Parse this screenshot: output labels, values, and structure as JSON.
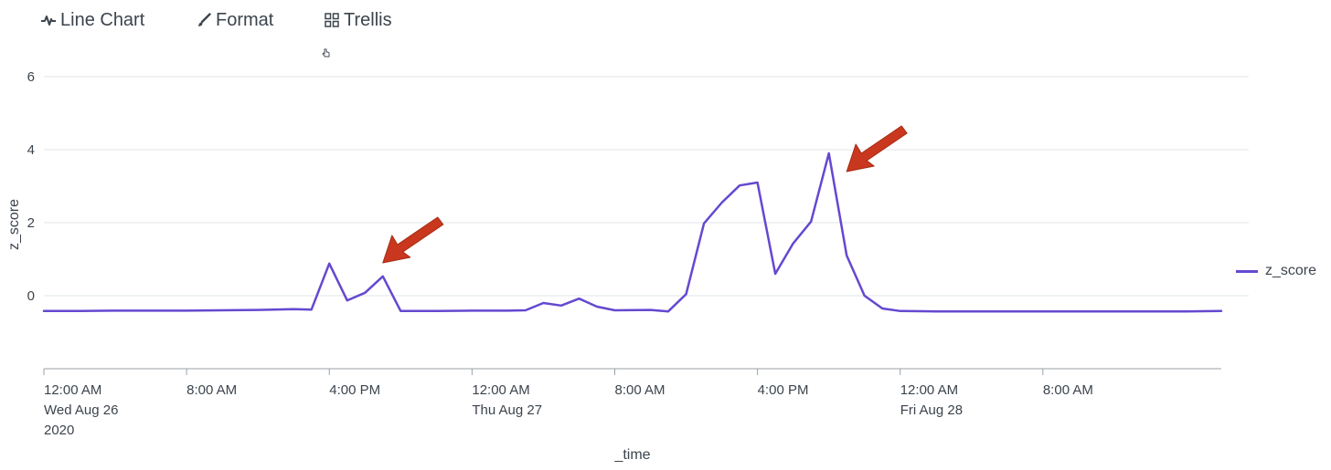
{
  "toolbar": {
    "line_chart_label": "Line Chart",
    "format_label": "Format",
    "trellis_label": "Trellis"
  },
  "icons": {
    "line_chart": "line-chart-icon",
    "format": "paintbrush-icon",
    "trellis": "grid-icon",
    "cursor": "hand-cursor-icon",
    "annotation": "red-arrow"
  },
  "colors": {
    "series": "#6548d0",
    "annotation_arrow": "#c9381e",
    "grid": "#e1e4e7",
    "axis": "#9aa0a6",
    "text": "#3c444d"
  },
  "legend": {
    "label": "z_score"
  },
  "chart_data": {
    "type": "line",
    "xlabel": "_time",
    "ylabel": "z_score",
    "ylim": [
      -2,
      6.5
    ],
    "yticks": [
      0,
      2,
      4,
      6
    ],
    "grid": true,
    "legend_position": "right",
    "x_range": [
      "2020-08-26 00:00",
      "2020-08-28 18:00"
    ],
    "x_ticks": [
      {
        "t": "2020-08-26 00:00",
        "lines": [
          "12:00 AM",
          "Wed Aug 26",
          "2020"
        ]
      },
      {
        "t": "2020-08-26 08:00",
        "lines": [
          "8:00 AM"
        ]
      },
      {
        "t": "2020-08-26 16:00",
        "lines": [
          "4:00 PM"
        ]
      },
      {
        "t": "2020-08-27 00:00",
        "lines": [
          "12:00 AM",
          "Thu Aug 27"
        ]
      },
      {
        "t": "2020-08-27 08:00",
        "lines": [
          "8:00 AM"
        ]
      },
      {
        "t": "2020-08-27 16:00",
        "lines": [
          "4:00 PM"
        ]
      },
      {
        "t": "2020-08-28 00:00",
        "lines": [
          "12:00 AM",
          "Fri Aug 28"
        ]
      },
      {
        "t": "2020-08-28 08:00",
        "lines": [
          "8:00 AM"
        ]
      }
    ],
    "series": [
      {
        "name": "z_score",
        "points": [
          [
            "2020-08-26 00:00",
            -0.42
          ],
          [
            "2020-08-26 02:00",
            -0.42
          ],
          [
            "2020-08-26 04:00",
            -0.41
          ],
          [
            "2020-08-26 06:00",
            -0.41
          ],
          [
            "2020-08-26 08:00",
            -0.41
          ],
          [
            "2020-08-26 10:00",
            -0.4
          ],
          [
            "2020-08-26 12:00",
            -0.39
          ],
          [
            "2020-08-26 14:00",
            -0.37
          ],
          [
            "2020-08-26 15:00",
            -0.38
          ],
          [
            "2020-08-26 16:00",
            0.88
          ],
          [
            "2020-08-26 17:00",
            -0.13
          ],
          [
            "2020-08-26 18:00",
            0.08
          ],
          [
            "2020-08-26 19:00",
            0.53
          ],
          [
            "2020-08-26 20:00",
            -0.42
          ],
          [
            "2020-08-26 22:00",
            -0.42
          ],
          [
            "2020-08-27 00:00",
            -0.41
          ],
          [
            "2020-08-27 02:00",
            -0.41
          ],
          [
            "2020-08-27 03:00",
            -0.4
          ],
          [
            "2020-08-27 04:00",
            -0.2
          ],
          [
            "2020-08-27 05:00",
            -0.27
          ],
          [
            "2020-08-27 06:00",
            -0.08
          ],
          [
            "2020-08-27 07:00",
            -0.3
          ],
          [
            "2020-08-27 08:00",
            -0.4
          ],
          [
            "2020-08-27 10:00",
            -0.39
          ],
          [
            "2020-08-27 11:00",
            -0.43
          ],
          [
            "2020-08-27 12:00",
            0.04
          ],
          [
            "2020-08-27 13:00",
            1.98
          ],
          [
            "2020-08-27 14:00",
            2.55
          ],
          [
            "2020-08-27 15:00",
            3.02
          ],
          [
            "2020-08-27 16:00",
            3.1
          ],
          [
            "2020-08-27 17:00",
            0.6
          ],
          [
            "2020-08-27 18:00",
            1.43
          ],
          [
            "2020-08-27 19:00",
            2.03
          ],
          [
            "2020-08-27 20:00",
            3.9
          ],
          [
            "2020-08-27 21:00",
            1.1
          ],
          [
            "2020-08-27 22:00",
            0.0
          ],
          [
            "2020-08-27 23:00",
            -0.35
          ],
          [
            "2020-08-28 00:00",
            -0.42
          ],
          [
            "2020-08-28 02:00",
            -0.43
          ],
          [
            "2020-08-28 04:00",
            -0.43
          ],
          [
            "2020-08-28 06:00",
            -0.43
          ],
          [
            "2020-08-28 08:00",
            -0.43
          ],
          [
            "2020-08-28 10:00",
            -0.43
          ],
          [
            "2020-08-28 12:00",
            -0.43
          ],
          [
            "2020-08-28 14:00",
            -0.43
          ],
          [
            "2020-08-28 16:00",
            -0.43
          ],
          [
            "2020-08-28 18:00",
            -0.42
          ]
        ]
      }
    ],
    "annotations": [
      {
        "type": "arrow",
        "points_to": [
          "2020-08-26 19:00",
          0.9
        ]
      },
      {
        "type": "arrow",
        "points_to": [
          "2020-08-27 21:00",
          3.4
        ]
      }
    ]
  }
}
